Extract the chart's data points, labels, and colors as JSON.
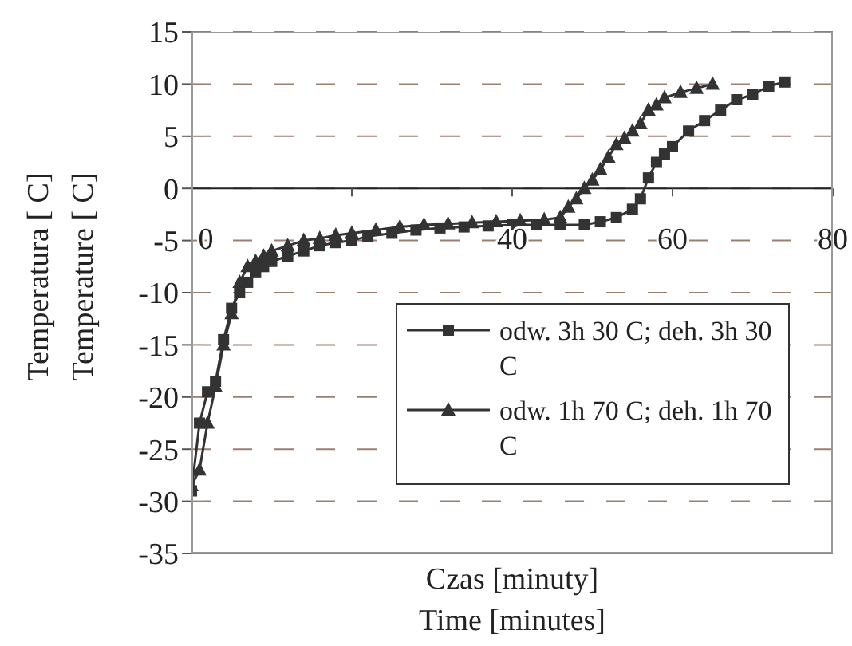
{
  "chart_data": {
    "type": "line",
    "xlabel": "Czas [minuty]\nTime [minutes]",
    "ylabel": "Temperatura [ C]\nTemperature [ C]",
    "xlim": [
      0,
      80
    ],
    "xticks": [
      0,
      {
        "value": 20,
        "label": null
      },
      40,
      60,
      80
    ],
    "ylim": [
      -35,
      15
    ],
    "yticks": [
      -35,
      -30,
      -25,
      -20,
      -15,
      -10,
      -5,
      0,
      5,
      10,
      15
    ],
    "grid": "y",
    "legend": "right",
    "series": [
      {
        "name": "odw. 3h 30 C; deh. 3h 30 C",
        "color": "#333333",
        "marker": "square",
        "x": [
          0,
          1,
          2,
          3,
          4,
          5,
          6,
          7,
          8,
          9,
          10,
          12,
          14,
          16,
          18,
          20,
          22,
          25,
          28,
          31,
          34,
          37,
          40,
          43,
          46,
          49,
          51,
          53,
          55,
          56,
          57,
          58,
          59,
          60,
          62,
          64,
          66,
          68,
          70,
          72,
          74
        ],
        "values": [
          -29,
          -22.5,
          -19.5,
          -18.5,
          -14.5,
          -11.5,
          -10,
          -9,
          -8,
          -7.5,
          -7,
          -6.5,
          -6,
          -5.5,
          -5.2,
          -5,
          -4.6,
          -4.3,
          -4,
          -3.8,
          -3.7,
          -3.6,
          -3.5,
          -3.5,
          -3.5,
          -3.5,
          -3.2,
          -2.8,
          -2,
          -1,
          1,
          2.5,
          3.3,
          4,
          5.5,
          6.5,
          7.5,
          8.5,
          9,
          9.8,
          10.2
        ]
      },
      {
        "name": "odw. 1h 70 C; deh. 1h 70 C",
        "color": "#333333",
        "marker": "triangle",
        "x": [
          0,
          1,
          2,
          3,
          4,
          5,
          6,
          7,
          8,
          9,
          10,
          12,
          14,
          16,
          18,
          20,
          23,
          26,
          29,
          32,
          35,
          38,
          41,
          44,
          46,
          47,
          48,
          49,
          50,
          51,
          52,
          53,
          54,
          55,
          56,
          57,
          58,
          59,
          61,
          63,
          65
        ],
        "values": [
          -28.5,
          -27,
          -22.5,
          -19,
          -15,
          -12,
          -9,
          -7.5,
          -7,
          -6.5,
          -6,
          -5.5,
          -5,
          -4.8,
          -4.5,
          -4.3,
          -4,
          -3.7,
          -3.5,
          -3.4,
          -3.3,
          -3.2,
          -3.1,
          -3,
          -2.8,
          -1.8,
          -1,
          0,
          0.8,
          1.8,
          3,
          4.2,
          4.8,
          5.5,
          6.2,
          7.5,
          8,
          8.7,
          9.2,
          9.6,
          10
        ]
      }
    ]
  }
}
